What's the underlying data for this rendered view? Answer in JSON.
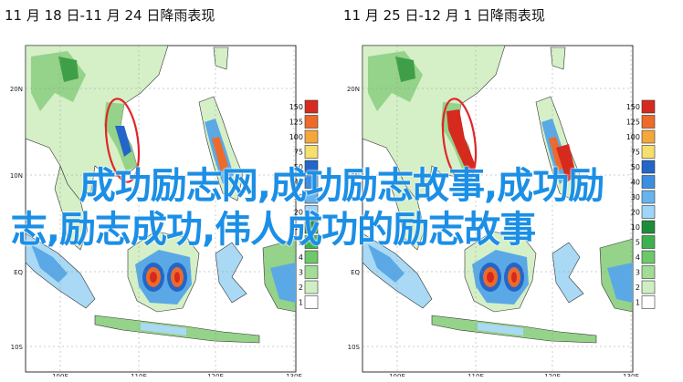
{
  "panels": [
    {
      "title": "11 月 18 日-11 月 24 日降雨表现",
      "y_labels": [
        "20N",
        "10N",
        "EQ",
        "10S"
      ],
      "x_labels": [
        "100E",
        "110E",
        "120E",
        "130E"
      ],
      "legend_values": [
        "150",
        "125",
        "100",
        "75",
        "50",
        "40",
        "30",
        "20",
        "10",
        "5",
        "4",
        "3",
        "2",
        "1"
      ],
      "highlight_color": "#e0262a"
    },
    {
      "title": "11 月 25 日-12 月 1 日降雨表现",
      "y_labels": [
        "20N",
        "10N",
        "EQ",
        "10S"
      ],
      "x_labels": [
        "100E",
        "110E",
        "120E",
        "130E"
      ],
      "legend_values": [
        "150",
        "125",
        "100",
        "75",
        "50",
        "40",
        "30",
        "20",
        "10",
        "5",
        "4",
        "3",
        "2",
        "1"
      ],
      "highlight_color": "#e0262a"
    }
  ],
  "overlay": {
    "line1": "成功励志网,成功励志故事,成功励",
    "line2": "志,励志成功,伟人成功的励志故事"
  },
  "legend_colors": [
    "#d62a1e",
    "#ee6a2a",
    "#f4a83c",
    "#f5df6e",
    "#2366c8",
    "#3b8ee0",
    "#67b3ef",
    "#9fd5f6",
    "#1f8c3a",
    "#3eb14f",
    "#6dc86a",
    "#a3dc97",
    "#cfeec4",
    "#ffffff"
  ],
  "colors": {
    "ocean": "#ffffff",
    "land_light": "#d5efc7",
    "land_mid": "#95d28a",
    "land_dark": "#3f9f48",
    "rain_light": "#a9d9f4",
    "rain_mid": "#5aa9e6",
    "rain_dark": "#2460c4",
    "coast": "#333333",
    "frame": "#333333",
    "overlay_text": "#1b8fe6"
  }
}
